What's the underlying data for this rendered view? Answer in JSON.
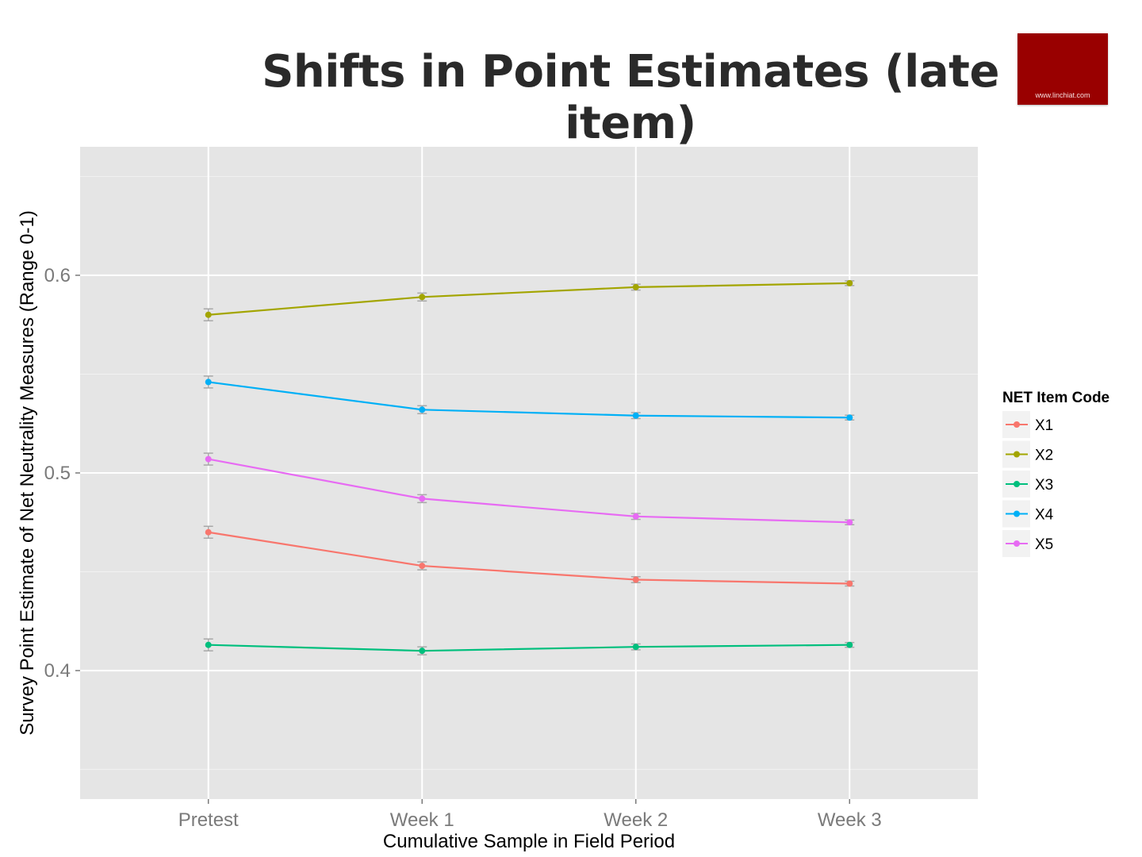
{
  "slide": {
    "title": "Shifts in Point Estimates (late item)",
    "logo_text": "www.linchiat.com",
    "logo_color": "#990000"
  },
  "chart_data": {
    "type": "line",
    "title": "",
    "xlabel": "Cumulative Sample in Field Period",
    "ylabel": "Survey Point Estimate of Net Neutrality Measures (Range 0-1)",
    "categories": [
      "Pretest",
      "Week 1",
      "Week 2",
      "Week 3"
    ],
    "ylim": [
      0.335,
      0.665
    ],
    "yticks": [
      0.4,
      0.5,
      0.6
    ],
    "ytick_labels": [
      "0.4",
      "0.5",
      "0.6"
    ],
    "grid": true,
    "error_bars": true,
    "legend": {
      "title": "NET Item Code",
      "position": "right"
    },
    "series": [
      {
        "name": "X1",
        "color": "#F8766D",
        "values": [
          0.47,
          0.453,
          0.446,
          0.444
        ],
        "errors": [
          0.003,
          0.002,
          0.0015,
          0.0012
        ]
      },
      {
        "name": "X2",
        "color": "#A3A500",
        "values": [
          0.58,
          0.589,
          0.594,
          0.596
        ],
        "errors": [
          0.003,
          0.002,
          0.0015,
          0.0012
        ]
      },
      {
        "name": "X3",
        "color": "#00BF7D",
        "values": [
          0.413,
          0.41,
          0.412,
          0.413
        ],
        "errors": [
          0.003,
          0.002,
          0.0015,
          0.0012
        ]
      },
      {
        "name": "X4",
        "color": "#00B0F6",
        "values": [
          0.546,
          0.532,
          0.529,
          0.528
        ],
        "errors": [
          0.003,
          0.002,
          0.0015,
          0.0012
        ]
      },
      {
        "name": "X5",
        "color": "#E76BF3",
        "values": [
          0.507,
          0.487,
          0.478,
          0.475
        ],
        "errors": [
          0.003,
          0.002,
          0.0015,
          0.0012
        ]
      }
    ]
  }
}
